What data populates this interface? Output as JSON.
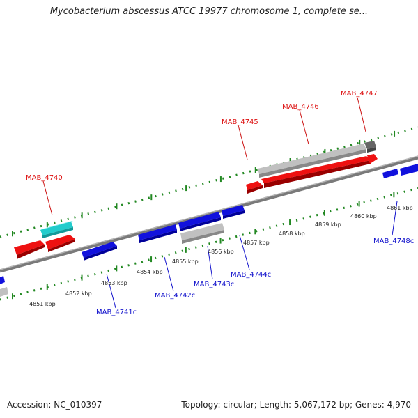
{
  "title": "Mycobacterium abscessus ATCC 19977 chromosome 1, complete se...",
  "footer": {
    "accession": "Accession: NC_010397",
    "summary": "Topology: circular; Length: 5,067,172 bp; Genes: 4,970"
  },
  "colors": {
    "forward_gene": "#ee1111",
    "reverse_gene": "#1111dd",
    "pseudo_gene": "#c0c0c0",
    "rna_gene": "#22cccc",
    "backbone": "#888888",
    "tick": "#228822",
    "label_forward": "#dd1111",
    "label_reverse": "#1111cc"
  },
  "kbp_ticks": [
    "4851 kbp",
    "4852 kbp",
    "4853 kbp",
    "4854 kbp",
    "4855 kbp",
    "4856 kbp",
    "4857 kbp",
    "4858 kbp",
    "4859 kbp",
    "4860 kbp",
    "4861 kbp"
  ],
  "gene_labels_forward": [
    "MAB_4740",
    "MAB_4745",
    "MAB_4746",
    "MAB_4747"
  ],
  "gene_labels_reverse": [
    "MAB_4741c",
    "MAB_4742c",
    "MAB_4743c",
    "MAB_4744c",
    "MAB_4748c"
  ]
}
